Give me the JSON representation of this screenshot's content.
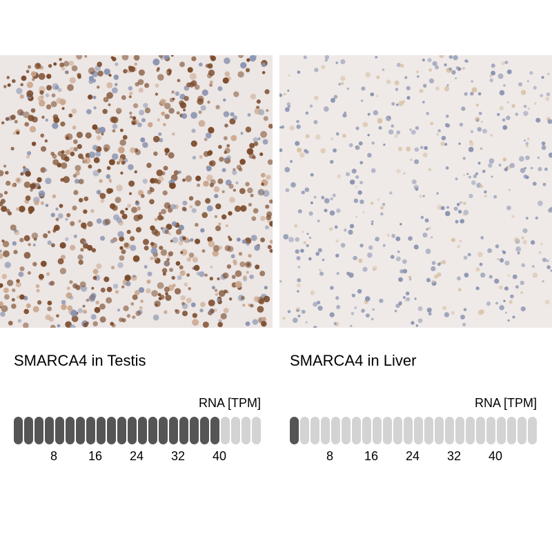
{
  "panels": [
    {
      "title": "SMARCA4 in Testis",
      "tissue": "Testis",
      "rna_label": "RNA [TPM]",
      "rna_tpm": 40,
      "pills_total": 24,
      "pills_filled": 20,
      "ticks": [
        "8",
        "16",
        "24",
        "32",
        "40"
      ],
      "image_style": "testis"
    },
    {
      "title": "SMARCA4 in Liver",
      "tissue": "Liver",
      "rna_label": "RNA [TPM]",
      "rna_tpm": 2,
      "pills_total": 24,
      "pills_filled": 1,
      "ticks": [
        "8",
        "16",
        "24",
        "32",
        "40"
      ],
      "image_style": "liver"
    }
  ],
  "colors": {
    "filled": "#555555",
    "empty": "#d3d3d3",
    "stain_brown": "#7a4a2a",
    "nuclei_blue": "#8a93b0"
  }
}
